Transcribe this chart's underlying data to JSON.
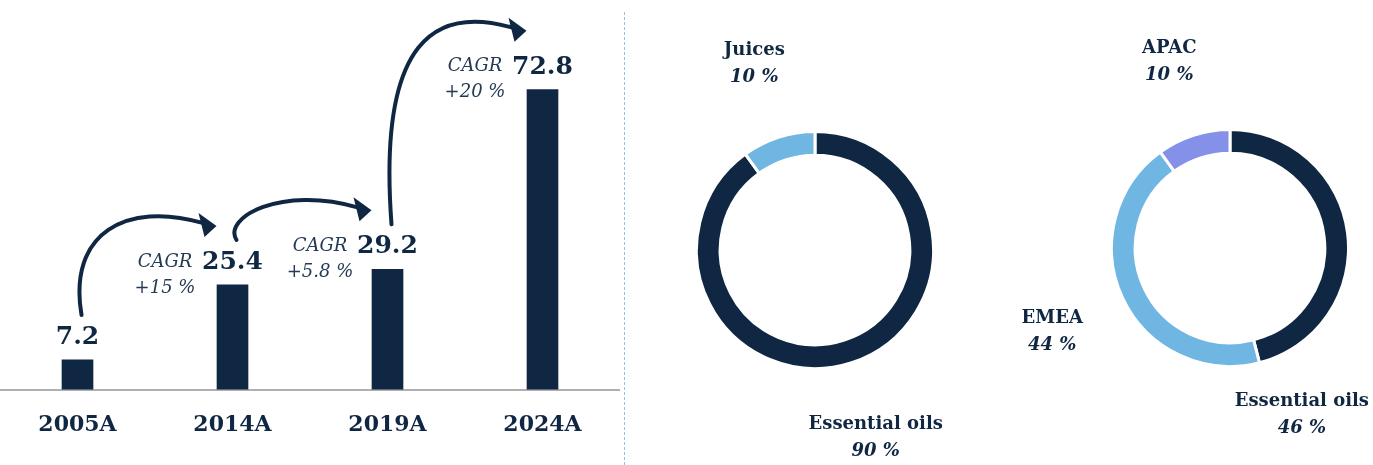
{
  "chart_data": [
    {
      "type": "bar",
      "categories": [
        "2005A",
        "2014A",
        "2019A",
        "2024A"
      ],
      "values": [
        7.2,
        25.4,
        29.2,
        72.8
      ],
      "color": "#0f2742",
      "data_labels": true,
      "annotations": [
        "CAGR +15 %",
        "CAGR +5.8 %",
        "CAGR +20 %"
      ]
    },
    {
      "type": "donut",
      "categories": [
        "Essential oils",
        "Juices"
      ],
      "values": [
        90,
        10
      ],
      "colors": [
        "#0f2742",
        "#70b6e2"
      ],
      "value_labels": [
        "90 %",
        "10 %"
      ]
    },
    {
      "type": "donut",
      "categories": [
        "Essential oils",
        "EMEA",
        "APAC"
      ],
      "values": [
        46,
        44,
        10
      ],
      "colors": [
        "#0f2742",
        "#70b6e2",
        "#8591e8"
      ],
      "value_labels": [
        "46 %",
        "44 %",
        "10 %"
      ]
    }
  ]
}
